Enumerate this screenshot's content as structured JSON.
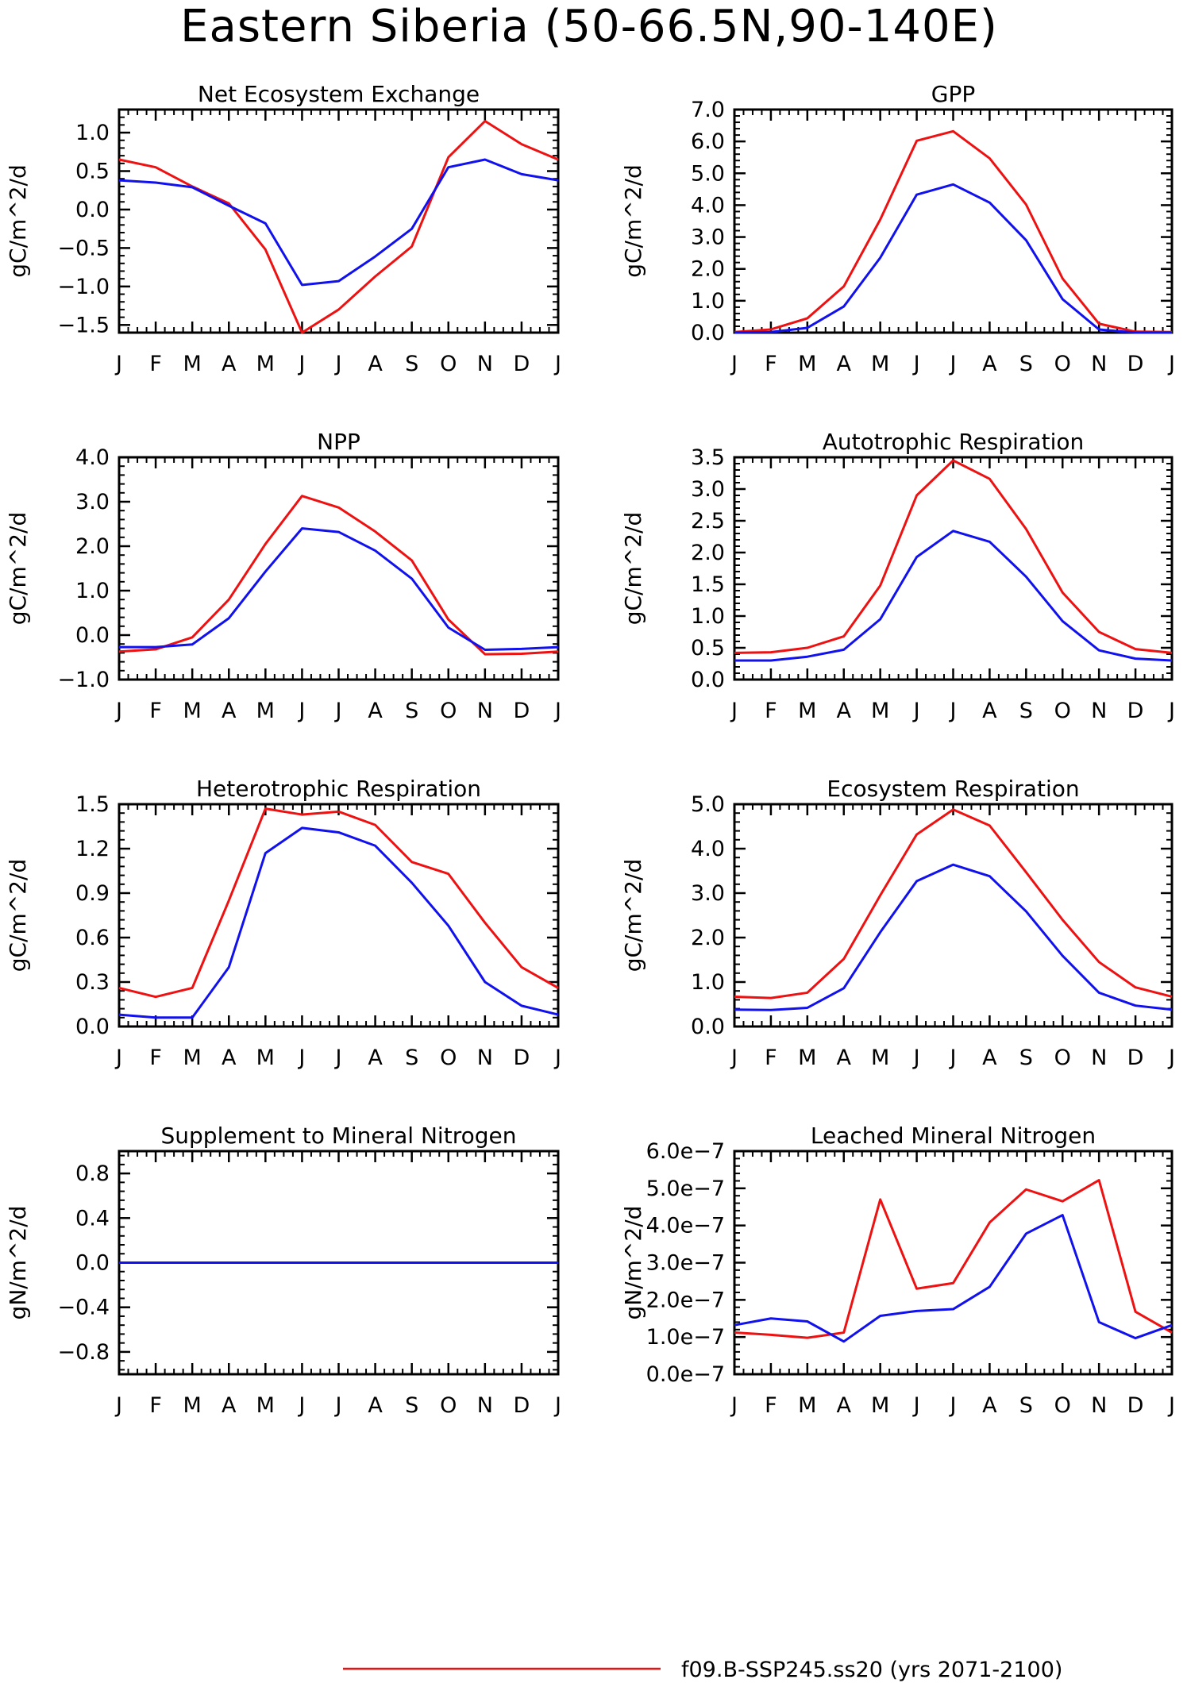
{
  "figure_title": "Eastern Siberia (50-66.5N,90-140E)",
  "legend": [
    {
      "label": "f09.B-SSP245.ss20 (yrs 2071-2100)",
      "color": "#ee1111"
    }
  ],
  "series_colors": {
    "red": "#ee1111",
    "blue": "#1111ee"
  },
  "months": [
    "J",
    "F",
    "M",
    "A",
    "M",
    "J",
    "J",
    "A",
    "S",
    "O",
    "N",
    "D",
    "J"
  ],
  "chart_data": [
    {
      "type": "line",
      "title": "Net Ecosystem Exchange",
      "ylabel": "gC/m^2/d",
      "ylim": [
        -1.6,
        1.3
      ],
      "yticks": [
        1.0,
        0.5,
        0.0,
        -0.5,
        -1.0,
        -1.5
      ],
      "ytick_labels": [
        "1.0",
        "0.5",
        "0.0",
        "−0.5",
        "−1.0",
        "−1.5"
      ],
      "series": [
        {
          "color": "red",
          "values": [
            0.65,
            0.55,
            0.3,
            0.08,
            -0.52,
            -1.6,
            -1.3,
            -0.87,
            -0.48,
            0.68,
            1.15,
            0.85,
            0.65
          ]
        },
        {
          "color": "blue",
          "values": [
            0.38,
            0.35,
            0.29,
            0.05,
            -0.18,
            -0.98,
            -0.93,
            -0.61,
            -0.25,
            0.55,
            0.65,
            0.46,
            0.38
          ]
        }
      ]
    },
    {
      "type": "line",
      "title": "GPP",
      "ylabel": "gC/m^2/d",
      "ylim": [
        0.0,
        7.0
      ],
      "yticks": [
        7.0,
        6.0,
        5.0,
        4.0,
        3.0,
        2.0,
        1.0,
        0.0
      ],
      "ytick_labels": [
        "7.0",
        "6.0",
        "5.0",
        "4.0",
        "3.0",
        "2.0",
        "1.0",
        "0.0"
      ],
      "series": [
        {
          "color": "red",
          "values": [
            0.02,
            0.1,
            0.45,
            1.45,
            3.55,
            6.02,
            6.32,
            5.47,
            4.02,
            1.7,
            0.28,
            0.03,
            0.02
          ]
        },
        {
          "color": "blue",
          "values": [
            0.0,
            0.02,
            0.15,
            0.82,
            2.35,
            4.33,
            4.65,
            4.08,
            2.9,
            1.05,
            0.1,
            0.0,
            0.0
          ]
        }
      ]
    },
    {
      "type": "line",
      "title": "NPP",
      "ylabel": "gC/m^2/d",
      "ylim": [
        -1.0,
        4.0
      ],
      "yticks": [
        4.0,
        3.0,
        2.0,
        1.0,
        0.0,
        -1.0
      ],
      "ytick_labels": [
        "4.0",
        "3.0",
        "2.0",
        "1.0",
        "0.0",
        "−1.0"
      ],
      "series": [
        {
          "color": "red",
          "values": [
            -0.37,
            -0.32,
            -0.05,
            0.8,
            2.05,
            3.13,
            2.87,
            2.33,
            1.68,
            0.35,
            -0.43,
            -0.42,
            -0.37
          ]
        },
        {
          "color": "blue",
          "values": [
            -0.27,
            -0.27,
            -0.21,
            0.38,
            1.43,
            2.4,
            2.32,
            1.9,
            1.27,
            0.17,
            -0.33,
            -0.31,
            -0.27
          ]
        }
      ]
    },
    {
      "type": "line",
      "title": "Autotrophic Respiration",
      "ylabel": "gC/m^2/d",
      "ylim": [
        0.0,
        3.5
      ],
      "yticks": [
        3.5,
        3.0,
        2.5,
        2.0,
        1.5,
        1.0,
        0.5,
        0.0
      ],
      "ytick_labels": [
        "3.5",
        "3.0",
        "2.5",
        "2.0",
        "1.5",
        "1.0",
        "0.5",
        "0.0"
      ],
      "series": [
        {
          "color": "red",
          "values": [
            0.42,
            0.43,
            0.5,
            0.68,
            1.48,
            2.9,
            3.45,
            3.16,
            2.37,
            1.37,
            0.75,
            0.48,
            0.42
          ]
        },
        {
          "color": "blue",
          "values": [
            0.3,
            0.3,
            0.36,
            0.47,
            0.95,
            1.93,
            2.34,
            2.17,
            1.62,
            0.92,
            0.46,
            0.33,
            0.3
          ]
        }
      ]
    },
    {
      "type": "line",
      "title": "Heterotrophic Respiration",
      "ylabel": "gC/m^2/d",
      "ylim": [
        0.0,
        1.5
      ],
      "yticks": [
        1.5,
        1.2,
        0.9,
        0.6,
        0.3,
        0.0
      ],
      "ytick_labels": [
        "1.5",
        "1.2",
        "0.9",
        "0.6",
        "0.3",
        "0.0"
      ],
      "series": [
        {
          "color": "red",
          "values": [
            0.26,
            0.2,
            0.26,
            0.85,
            1.47,
            1.43,
            1.45,
            1.36,
            1.11,
            1.03,
            0.7,
            0.4,
            0.26
          ]
        },
        {
          "color": "blue",
          "values": [
            0.08,
            0.06,
            0.06,
            0.4,
            1.17,
            1.34,
            1.31,
            1.22,
            0.97,
            0.68,
            0.3,
            0.14,
            0.08
          ]
        }
      ]
    },
    {
      "type": "line",
      "title": "Ecosystem Respiration",
      "ylabel": "gC/m^2/d",
      "ylim": [
        0.0,
        5.0
      ],
      "yticks": [
        5.0,
        4.0,
        3.0,
        2.0,
        1.0,
        0.0
      ],
      "ytick_labels": [
        "5.0",
        "4.0",
        "3.0",
        "2.0",
        "1.0",
        "0.0"
      ],
      "series": [
        {
          "color": "red",
          "values": [
            0.67,
            0.64,
            0.76,
            1.52,
            2.95,
            4.32,
            4.88,
            4.52,
            3.47,
            2.4,
            1.45,
            0.88,
            0.67
          ]
        },
        {
          "color": "blue",
          "values": [
            0.38,
            0.37,
            0.42,
            0.86,
            2.12,
            3.27,
            3.64,
            3.38,
            2.59,
            1.59,
            0.76,
            0.47,
            0.38
          ]
        }
      ]
    },
    {
      "type": "line",
      "title": "Supplement to Mineral Nitrogen",
      "ylabel": "gN/m^2/d",
      "ylim": [
        -1.0,
        1.0
      ],
      "yticks": [
        0.8,
        0.4,
        0.0,
        -0.4,
        -0.8
      ],
      "ytick_labels": [
        "0.8",
        "0.4",
        "0.0",
        "−0.4",
        "−0.8"
      ],
      "series": [
        {
          "color": "red",
          "values": [
            0,
            0,
            0,
            0,
            0,
            0,
            0,
            0,
            0,
            0,
            0,
            0,
            0
          ]
        },
        {
          "color": "blue",
          "values": [
            0,
            0,
            0,
            0,
            0,
            0,
            0,
            0,
            0,
            0,
            0,
            0,
            0
          ]
        }
      ]
    },
    {
      "type": "line",
      "title": "Leached Mineral Nitrogen",
      "ylabel": "gN/m^2/d",
      "ylim": [
        0.0,
        6e-07
      ],
      "yticks": [
        6e-07,
        5e-07,
        4e-07,
        3e-07,
        2e-07,
        1e-07,
        0.0
      ],
      "ytick_labels": [
        "6.0e−7",
        "5.0e−7",
        "4.0e−7",
        "3.0e−7",
        "2.0e−7",
        "1.0e−7",
        "0.0e−7"
      ],
      "series": [
        {
          "color": "red",
          "values": [
            1.12e-07,
            1.06e-07,
            9.8e-08,
            1.12e-07,
            4.7e-07,
            2.3e-07,
            2.45e-07,
            4.08e-07,
            4.97e-07,
            4.65e-07,
            5.22e-07,
            1.68e-07,
            1.12e-07
          ]
        },
        {
          "color": "blue",
          "values": [
            1.32e-07,
            1.5e-07,
            1.42e-07,
            8.8e-08,
            1.57e-07,
            1.7e-07,
            1.75e-07,
            2.35e-07,
            3.78e-07,
            4.28e-07,
            1.4e-07,
            9.7e-08,
            1.32e-07
          ]
        }
      ]
    }
  ]
}
